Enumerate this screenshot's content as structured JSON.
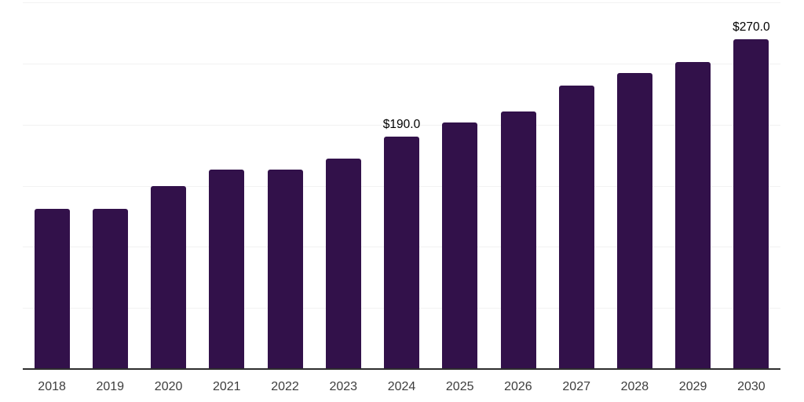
{
  "chart_data": {
    "type": "bar",
    "title": "",
    "xlabel": "",
    "ylabel": "",
    "categories": [
      "2018",
      "2019",
      "2020",
      "2021",
      "2022",
      "2023",
      "2024",
      "2025",
      "2026",
      "2027",
      "2028",
      "2029",
      "2030"
    ],
    "values": [
      131.0,
      131.0,
      150.0,
      163.0,
      163.0,
      172.0,
      190.0,
      202.0,
      211.0,
      232.0,
      242.0,
      251.0,
      270.0
    ],
    "data_labels": [
      "",
      "",
      "",
      "",
      "",
      "",
      "$190.0",
      "",
      "",
      "",
      "",
      "",
      "$270.0"
    ],
    "ylim": [
      0,
      300
    ],
    "grid": true,
    "gridline_step": 50,
    "y_axis_labels_visible": false,
    "legend": "none",
    "colors": {
      "bar_fill": "#32114a",
      "gridline": "#f2f2f2",
      "axis_line": "#2e2e2e",
      "tick_label": "#3d3d3d",
      "data_label": "#000000",
      "background": "#ffffff"
    }
  }
}
